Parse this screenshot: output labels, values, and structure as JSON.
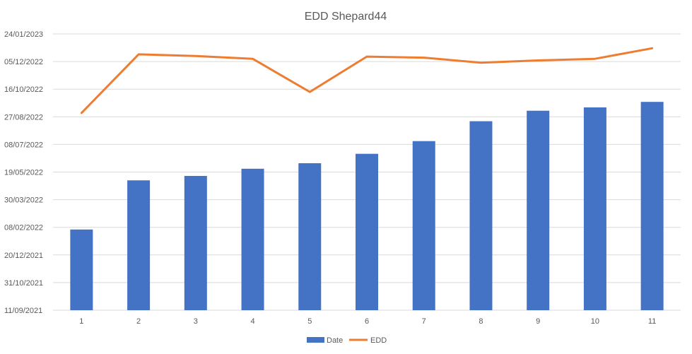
{
  "chart_data": {
    "type": "bar",
    "title": "EDD Shepard44",
    "categories": [
      "1",
      "2",
      "3",
      "4",
      "5",
      "6",
      "7",
      "8",
      "9",
      "10",
      "11"
    ],
    "y_tick_labels": [
      "11/09/2021",
      "31/10/2021",
      "20/12/2021",
      "08/02/2022",
      "30/03/2022",
      "19/05/2022",
      "08/07/2022",
      "27/08/2022",
      "16/10/2022",
      "05/12/2022",
      "24/01/2023"
    ],
    "ylim": [
      "2021-09-11",
      "2023-01-24"
    ],
    "grid": true,
    "legend_position": "bottom",
    "series": [
      {
        "name": "Date",
        "type": "bar",
        "color": "#4472C4",
        "values": [
          "2022-02-04",
          "2022-05-04",
          "2022-05-12",
          "2022-05-25",
          "2022-06-04",
          "2022-06-21",
          "2022-07-14",
          "2022-08-19",
          "2022-09-07",
          "2022-09-13",
          "2022-09-23"
        ]
      },
      {
        "name": "EDD",
        "type": "line",
        "color": "#ED7D31",
        "values": [
          "2022-09-03",
          "2022-12-18",
          "2022-12-15",
          "2022-12-10",
          "2022-10-11",
          "2022-12-14",
          "2022-12-12",
          "2022-12-03",
          "2022-12-07",
          "2022-12-10",
          "2022-12-29"
        ]
      }
    ]
  }
}
